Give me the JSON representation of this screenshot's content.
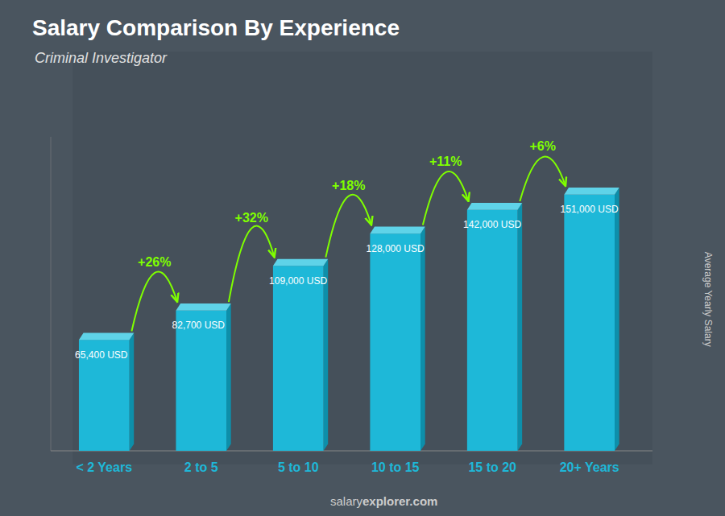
{
  "chart_data": {
    "type": "bar",
    "title": "Salary Comparison By Experience",
    "subtitle": "Criminal Investigator",
    "categories": [
      "< 2 Years",
      "2 to 5",
      "5 to 10",
      "10 to 15",
      "15 to 20",
      "20+ Years"
    ],
    "values": [
      65400,
      82700,
      109000,
      128000,
      142000,
      151000
    ],
    "value_labels": [
      "65,400 USD",
      "82,700 USD",
      "109,000 USD",
      "128,000 USD",
      "142,000 USD",
      "151,000 USD"
    ],
    "data_labels": true,
    "color": "#1eb8d8",
    "ylabel": "Average Yearly Salary",
    "ylim": [
      0,
      185000
    ],
    "yticks": [],
    "grid": false,
    "tick_labels": "x",
    "annotations": [
      "+26%",
      "+32%",
      "+18%",
      "+11%",
      "+6%"
    ],
    "footer": [
      "salary",
      "explorer.com"
    ]
  }
}
